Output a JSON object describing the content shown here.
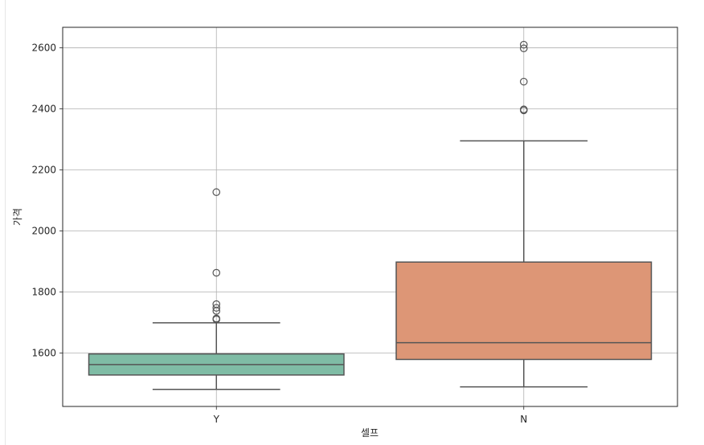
{
  "chart_data": {
    "type": "box",
    "title": "",
    "xlabel": "셀프",
    "ylabel": "가격",
    "categories": [
      "Y",
      "N"
    ],
    "ylim": [
      1425,
      2667
    ],
    "yticks": [
      1600,
      1800,
      2000,
      2200,
      2400,
      2600
    ],
    "ytick_labels": [
      "1600",
      "1800",
      "2000",
      "2200",
      "2400",
      "2600"
    ],
    "grid": true,
    "boxes": [
      {
        "category": "Y",
        "whisker_low": 1481,
        "q1": 1528,
        "median": 1562,
        "q3": 1597,
        "whisker_high": 1699,
        "outliers": [
          1710,
          1713,
          1738,
          1748,
          1760,
          1863,
          2127
        ],
        "color": "#7fbca5"
      },
      {
        "category": "N",
        "whisker_low": 1489,
        "q1": 1579,
        "median": 1634,
        "q3": 1898,
        "whisker_high": 2295,
        "outliers": [
          2395,
          2398,
          2489,
          2598,
          2610
        ],
        "color": "#dd9676"
      }
    ]
  }
}
